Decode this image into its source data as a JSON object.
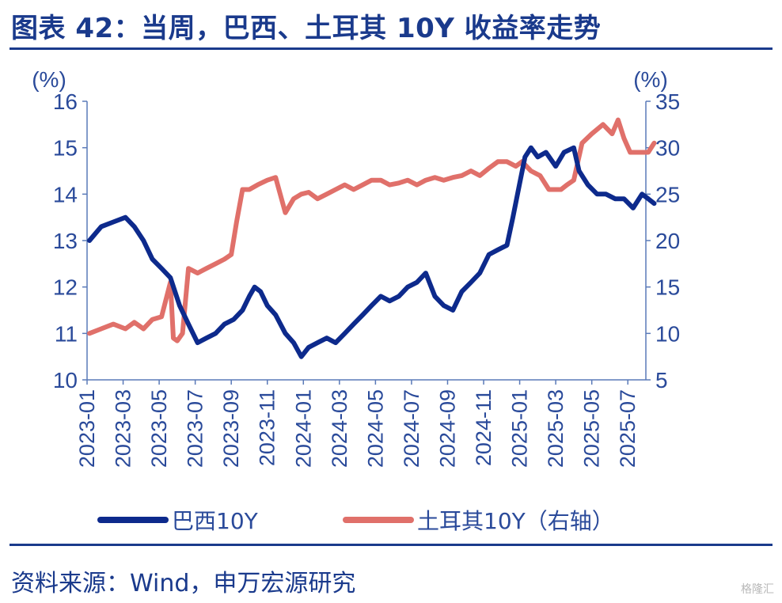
{
  "header": {
    "title": "图表 42：当周，巴西、土耳其 10Y 收益率走势"
  },
  "footer": {
    "source": "资料来源：Wind，申万宏源研究",
    "watermark": "格隆汇"
  },
  "chart_data": {
    "type": "line",
    "y_left_unit": "(%)",
    "y_right_unit": "(%)",
    "y_left_lim": [
      10,
      16
    ],
    "y_left_ticks": [
      10,
      11,
      12,
      13,
      14,
      15,
      16
    ],
    "y_right_lim": [
      5,
      35
    ],
    "y_right_ticks": [
      5,
      10,
      15,
      20,
      25,
      30,
      35
    ],
    "x_ticks": [
      "2023-01",
      "2023-03",
      "2023-05",
      "2023-07",
      "2023-09",
      "2023-11",
      "2024-01",
      "2024-03",
      "2024-05",
      "2024-07",
      "2024-09",
      "2024-11",
      "2025-01",
      "2025-03",
      "2025-05",
      "2025-07"
    ],
    "x_range": [
      "2023-01",
      "2025-08"
    ],
    "legend_placement": "bottom",
    "grid": false,
    "series": [
      {
        "name": "巴西10Y",
        "axis": "left",
        "color": "#0d2a8c",
        "x": [
          "2023-01-05",
          "2023-01-25",
          "2023-02-15",
          "2023-03-05",
          "2023-03-20",
          "2023-04-05",
          "2023-04-20",
          "2023-05-05",
          "2023-05-20",
          "2023-06-05",
          "2023-06-20",
          "2023-07-05",
          "2023-07-20",
          "2023-08-05",
          "2023-08-20",
          "2023-09-05",
          "2023-09-20",
          "2023-10-01",
          "2023-10-10",
          "2023-10-20",
          "2023-11-01",
          "2023-11-15",
          "2023-12-01",
          "2023-12-15",
          "2023-12-28",
          "2024-01-10",
          "2024-01-25",
          "2024-02-10",
          "2024-02-25",
          "2024-03-10",
          "2024-03-25",
          "2024-04-10",
          "2024-04-25",
          "2024-05-10",
          "2024-05-25",
          "2024-06-10",
          "2024-06-25",
          "2024-07-10",
          "2024-07-25",
          "2024-08-10",
          "2024-08-25",
          "2024-09-10",
          "2024-09-25",
          "2024-10-10",
          "2024-10-25",
          "2024-11-10",
          "2024-11-25",
          "2024-12-10",
          "2024-12-20",
          "2024-12-31",
          "2025-01-10",
          "2025-01-20",
          "2025-02-01",
          "2025-02-15",
          "2025-03-01",
          "2025-03-15",
          "2025-04-01",
          "2025-04-10",
          "2025-04-25",
          "2025-05-10",
          "2025-05-25",
          "2025-06-10",
          "2025-06-25",
          "2025-07-10",
          "2025-07-25",
          "2025-08-05",
          "2025-08-15"
        ],
        "values": [
          13.0,
          13.3,
          13.4,
          13.5,
          13.3,
          13.0,
          12.6,
          12.4,
          12.2,
          11.6,
          11.2,
          10.8,
          10.9,
          11.0,
          11.2,
          11.3,
          11.5,
          11.8,
          12.0,
          11.9,
          11.6,
          11.4,
          11.0,
          10.8,
          10.5,
          10.7,
          10.8,
          10.9,
          10.8,
          11.0,
          11.2,
          11.4,
          11.6,
          11.8,
          11.7,
          11.8,
          12.0,
          12.1,
          12.3,
          11.8,
          11.6,
          11.5,
          11.9,
          12.1,
          12.3,
          12.7,
          12.8,
          12.9,
          13.5,
          14.2,
          14.8,
          15.0,
          14.8,
          14.9,
          14.6,
          14.9,
          15.0,
          14.5,
          14.2,
          14.0,
          14.0,
          13.9,
          13.9,
          13.7,
          14.0,
          13.9,
          13.8
        ]
      },
      {
        "name": "土耳其10Y（右轴）",
        "axis": "right",
        "color": "#e0706a",
        "x": [
          "2023-01-05",
          "2023-01-25",
          "2023-02-15",
          "2023-03-05",
          "2023-03-20",
          "2023-04-05",
          "2023-04-20",
          "2023-05-05",
          "2023-05-20",
          "2023-05-25",
          "2023-06-01",
          "2023-06-10",
          "2023-06-20",
          "2023-07-05",
          "2023-07-20",
          "2023-08-05",
          "2023-08-20",
          "2023-09-01",
          "2023-09-10",
          "2023-09-20",
          "2023-10-01",
          "2023-10-15",
          "2023-11-01",
          "2023-11-15",
          "2023-12-01",
          "2023-12-15",
          "2023-12-28",
          "2024-01-10",
          "2024-01-25",
          "2024-02-10",
          "2024-02-25",
          "2024-03-10",
          "2024-03-25",
          "2024-04-10",
          "2024-04-25",
          "2024-05-10",
          "2024-05-25",
          "2024-06-10",
          "2024-06-25",
          "2024-07-10",
          "2024-07-25",
          "2024-08-10",
          "2024-08-25",
          "2024-09-10",
          "2024-09-25",
          "2024-10-10",
          "2024-10-25",
          "2024-11-10",
          "2024-11-25",
          "2024-12-10",
          "2024-12-25",
          "2025-01-05",
          "2025-01-20",
          "2025-02-05",
          "2025-02-20",
          "2025-03-10",
          "2025-03-20",
          "2025-04-01",
          "2025-04-15",
          "2025-05-01",
          "2025-05-20",
          "2025-06-05",
          "2025-06-15",
          "2025-06-25",
          "2025-07-05",
          "2025-07-20",
          "2025-08-05",
          "2025-08-15"
        ],
        "values": [
          10.0,
          10.5,
          11.0,
          10.5,
          11.2,
          10.5,
          11.5,
          11.8,
          15.5,
          9.5,
          9.2,
          10.0,
          17.0,
          16.5,
          17.0,
          17.5,
          18.0,
          18.5,
          22.0,
          25.5,
          25.5,
          26.0,
          26.5,
          26.8,
          23.0,
          24.5,
          25.0,
          25.2,
          24.5,
          25.0,
          25.5,
          26.0,
          25.5,
          26.0,
          26.5,
          26.5,
          26.0,
          26.2,
          26.5,
          26.0,
          26.5,
          26.8,
          26.5,
          26.8,
          27.0,
          27.5,
          27.0,
          27.8,
          28.5,
          28.5,
          28.0,
          28.5,
          27.5,
          27.0,
          25.5,
          25.5,
          26.0,
          26.5,
          30.5,
          31.5,
          32.5,
          31.5,
          33.0,
          31.0,
          29.5,
          29.5,
          29.5,
          30.5
        ]
      }
    ]
  }
}
